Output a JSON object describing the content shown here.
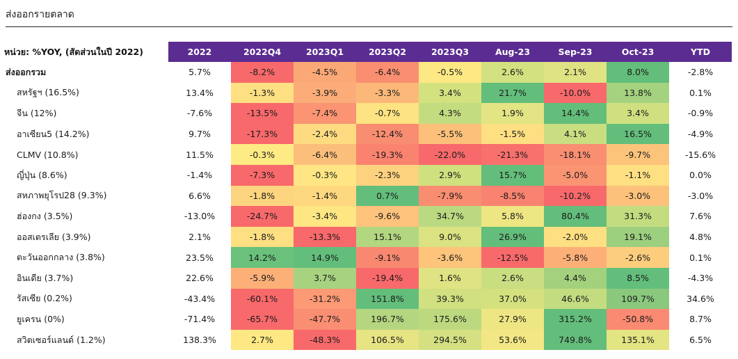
{
  "title": "ส่งออกรายตลาด",
  "table": {
    "corner_label": "หน่วย: %YOY, (สัดส่วนในปี 2022)",
    "columns": [
      "2022",
      "2022Q4",
      "2023Q1",
      "2023Q2",
      "2023Q3",
      "Aug-23",
      "Sep-23",
      "Oct-23",
      "YTD"
    ],
    "header_color": "#5b2c91",
    "rows": [
      {
        "label": "ส่งออกรวม",
        "total": true,
        "values": [
          "5.7%",
          "-8.2%",
          "-4.5%",
          "-6.4%",
          "-0.5%",
          "2.6%",
          "2.1%",
          "8.0%",
          "-2.8%"
        ],
        "colors": [
          "",
          "#f8696b",
          "#fba877",
          "#f98e71",
          "#fde883",
          "#d3e180",
          "#e0e383",
          "#63be7b",
          ""
        ]
      },
      {
        "label": "สหรัฐฯ (16.5%)",
        "values": [
          "13.4%",
          "-1.3%",
          "-3.9%",
          "-3.3%",
          "3.4%",
          "21.7%",
          "-10.0%",
          "13.8%",
          "0.1%"
        ],
        "colors": [
          "",
          "#fedf82",
          "#fcac78",
          "#fcb879",
          "#d4e17f",
          "#63be7b",
          "#f8696b",
          "#a5d27f",
          ""
        ]
      },
      {
        "label": "จีน (12%)",
        "values": [
          "-7.6%",
          "-13.5%",
          "-7.4%",
          "-0.7%",
          "4.3%",
          "1.9%",
          "14.4%",
          "3.4%",
          "-0.9%"
        ],
        "colors": [
          "",
          "#f8696b",
          "#fa9473",
          "#fee382",
          "#c4dc80",
          "#e3e483",
          "#63be7b",
          "#d0e080",
          ""
        ]
      },
      {
        "label": "อาเซียน5 (14.2%)",
        "values": [
          "9.7%",
          "-17.3%",
          "-2.4%",
          "-12.4%",
          "-5.5%",
          "-1.5%",
          "4.1%",
          "16.5%",
          "-4.9%"
        ],
        "colors": [
          "",
          "#f8696b",
          "#fedb81",
          "#f98d71",
          "#fcc07a",
          "#fedf82",
          "#c9de81",
          "#63be7b",
          ""
        ]
      },
      {
        "label": "CLMV (10.8%)",
        "values": [
          "11.5%",
          "-0.3%",
          "-6.4%",
          "-19.3%",
          "-22.0%",
          "-21.3%",
          "-18.1%",
          "-9.7%",
          "-15.6%"
        ],
        "colors": [
          "",
          "#ffeb84",
          "#fcbf7b",
          "#fa8370",
          "#f8696b",
          "#f8716c",
          "#f98e71",
          "#fcc47b",
          ""
        ]
      },
      {
        "label": "ญี่ปุ่น (8.6%)",
        "values": [
          "-1.4%",
          "-7.3%",
          "-0.3%",
          "-2.3%",
          "2.9%",
          "15.7%",
          "-5.0%",
          "-1.1%",
          "0.0%"
        ],
        "colors": [
          "",
          "#f8696b",
          "#ffe583",
          "#fdd27f",
          "#cfe07f",
          "#63be7b",
          "#fa9473",
          "#fedf82",
          ""
        ]
      },
      {
        "label": "สหภาพยุโรป28 (9.3%)",
        "values": [
          "6.6%",
          "-1.8%",
          "-1.4%",
          "0.7%",
          "-7.9%",
          "-8.5%",
          "-10.2%",
          "-3.0%",
          "-3.0%"
        ],
        "colors": [
          "",
          "#fdd47f",
          "#fed880",
          "#63be7b",
          "#f98d71",
          "#f98370",
          "#f8696b",
          "#fcc27b",
          ""
        ]
      },
      {
        "label": "ฮ่องกง (3.5%)",
        "values": [
          "-13.0%",
          "-24.7%",
          "-3.4%",
          "-9.6%",
          "34.7%",
          "5.8%",
          "80.4%",
          "31.3%",
          "7.6%"
        ],
        "colors": [
          "",
          "#f8696b",
          "#fee683",
          "#fdc27b",
          "#bbd981",
          "#ede683",
          "#63be7b",
          "#c3dc80",
          ""
        ]
      },
      {
        "label": "ออสเตรเลีย (3.9%)",
        "values": [
          "2.1%",
          "-1.8%",
          "-13.3%",
          "15.1%",
          "9.0%",
          "26.9%",
          "-2.0%",
          "19.1%",
          "4.8%"
        ],
        "colors": [
          "",
          "#fedf82",
          "#f8696b",
          "#b3d680",
          "#dae282",
          "#63be7b",
          "#fedf82",
          "#9ccf7e",
          ""
        ]
      },
      {
        "label": "ตะวันออกกลาง (3.8%)",
        "values": [
          "23.5%",
          "14.2%",
          "14.9%",
          "-9.1%",
          "-3.6%",
          "-12.5%",
          "-5.8%",
          "-2.6%",
          "0.1%"
        ],
        "colors": [
          "",
          "#6ac17c",
          "#63be7b",
          "#f98871",
          "#fdc47c",
          "#f8696b",
          "#fcb078",
          "#fdcd7e",
          ""
        ]
      },
      {
        "label": "อินเดีย (3.7%)",
        "values": [
          "22.6%",
          "-5.9%",
          "3.7%",
          "-19.4%",
          "1.6%",
          "2.6%",
          "4.4%",
          "8.5%",
          "-4.3%"
        ],
        "colors": [
          "",
          "#fcb078",
          "#a7d27f",
          "#f8696b",
          "#e0e383",
          "#c9de81",
          "#a3d17e",
          "#63be7b",
          ""
        ]
      },
      {
        "label": "รัสเซีย (0.2%)",
        "values": [
          "-43.4%",
          "-60.1%",
          "-31.2%",
          "151.8%",
          "39.3%",
          "37.0%",
          "46.6%",
          "109.7%",
          "34.6%"
        ],
        "colors": [
          "",
          "#f8696b",
          "#fb9a75",
          "#63be7b",
          "#d1e080",
          "#d5e17f",
          "#c4dc80",
          "#8ac97d",
          ""
        ]
      },
      {
        "label": "ยูเครน (0%)",
        "values": [
          "-71.4%",
          "-65.7%",
          "-47.7%",
          "196.7%",
          "175.6%",
          "27.9%",
          "315.2%",
          "-50.8%",
          "8.7%"
        ],
        "colors": [
          "",
          "#f8696b",
          "#fa8e72",
          "#b5d680",
          "#bcd980",
          "#eee683",
          "#63be7b",
          "#fa8a71",
          ""
        ]
      },
      {
        "label": "สวิตเซอร์แลนด์ (1.2%)",
        "values": [
          "138.3%",
          "2.7%",
          "-48.3%",
          "106.5%",
          "294.5%",
          "53.6%",
          "749.8%",
          "135.1%",
          "6.5%"
        ],
        "colors": [
          "",
          "#fee883",
          "#f8696b",
          "#e6e483",
          "#d4e081",
          "#f2e784",
          "#63be7b",
          "#e3e482",
          ""
        ]
      }
    ]
  }
}
